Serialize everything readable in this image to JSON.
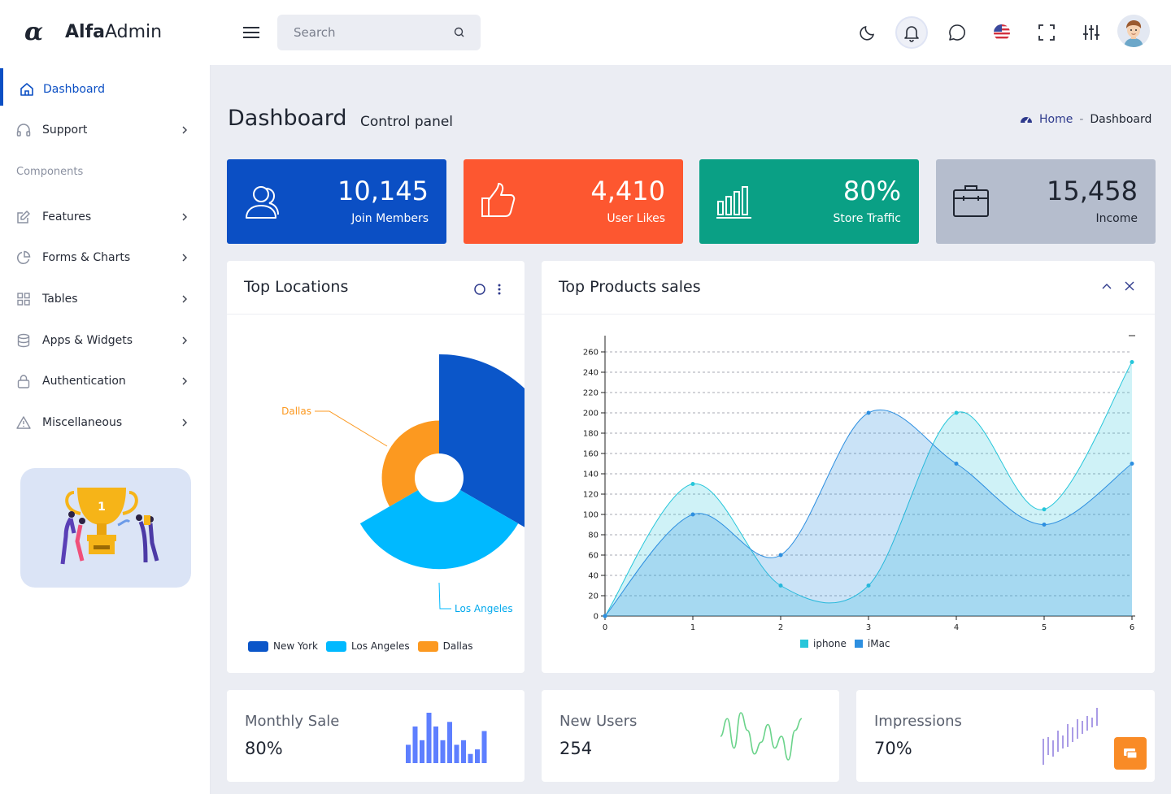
{
  "app": {
    "logo_mark": "α",
    "name_bold": "Alfa",
    "name_light": "Admin"
  },
  "header": {
    "search_placeholder": "Search"
  },
  "sidebar": {
    "items": [
      {
        "label": "Dashboard"
      },
      {
        "label": "Support"
      },
      {
        "label": "Features"
      },
      {
        "label": "Forms & Charts"
      },
      {
        "label": "Tables"
      },
      {
        "label": "Apps & Widgets"
      },
      {
        "label": "Authentication"
      },
      {
        "label": "Miscellaneous"
      }
    ],
    "section_label": "Components"
  },
  "page": {
    "title": "Dashboard",
    "subtitle": "Control panel"
  },
  "breadcrumb": {
    "home": "Home",
    "separator": "-",
    "current": "Dashboard"
  },
  "stats": [
    {
      "value": "10,145",
      "label": "Join Members",
      "color": "#0b4fc4",
      "icon": "users-icon"
    },
    {
      "value": "4,410",
      "label": "User Likes",
      "color": "#fd5730",
      "icon": "thumbs-up-icon"
    },
    {
      "value": "80%",
      "label": "Store Traffic",
      "color": "#0aa085",
      "icon": "bar-chart-icon"
    },
    {
      "value": "15,458",
      "label": "Income",
      "color": "#b5bdcd",
      "icon": "briefcase-icon"
    }
  ],
  "top_locations": {
    "title": "Top Locations",
    "labels": {
      "dallas": "Dallas",
      "los_angeles": "Los Angeles"
    },
    "legend": [
      {
        "name": "New York",
        "color": "#0b56c9"
      },
      {
        "name": "Los Angeles",
        "color": "#00b9ff"
      },
      {
        "name": "Dallas",
        "color": "#fc9920"
      }
    ]
  },
  "top_products": {
    "title": "Top Products sales",
    "legend": [
      {
        "name": "iphone",
        "color": "#26c6da"
      },
      {
        "name": "iMac",
        "color": "#2d8fe0"
      }
    ]
  },
  "chart_data": [
    {
      "type": "pie",
      "title": "Top Locations",
      "slices": [
        {
          "name": "New York",
          "value": 44,
          "color": "#0b56c9"
        },
        {
          "name": "Los Angeles",
          "value": 55,
          "color": "#00b9ff"
        },
        {
          "name": "Dallas",
          "value": 41,
          "color": "#fc9920"
        }
      ]
    },
    {
      "type": "area",
      "title": "Top Products sales",
      "x": [
        0,
        1,
        2,
        3,
        4,
        5,
        6
      ],
      "series": [
        {
          "name": "iphone",
          "values": [
            0,
            130,
            30,
            30,
            200,
            105,
            250
          ],
          "color": "#26c6da"
        },
        {
          "name": "iMac",
          "values": [
            0,
            100,
            60,
            200,
            150,
            90,
            150
          ],
          "color": "#2d8fe0"
        }
      ],
      "ylim": [
        0,
        260
      ],
      "yticks": [
        0,
        20,
        40,
        60,
        80,
        100,
        120,
        140,
        160,
        180,
        200,
        220,
        240,
        260
      ],
      "grid": true,
      "legend": "bottom"
    },
    {
      "type": "bar",
      "title": "Monthly Sale",
      "values": [
        4,
        8,
        5,
        11,
        8,
        5,
        9,
        4,
        5,
        2,
        3,
        7
      ],
      "color": "#5e7fff"
    },
    {
      "type": "line",
      "title": "New Users",
      "values": [
        5,
        8,
        3,
        9,
        6,
        2,
        4,
        7,
        3,
        5,
        1,
        6,
        8
      ],
      "color": "#6bd38b"
    }
  ],
  "mini_stats": [
    {
      "title": "Monthly Sale",
      "value": "80%"
    },
    {
      "title": "New Users",
      "value": "254"
    },
    {
      "title": "Impressions",
      "value": "70%"
    }
  ]
}
